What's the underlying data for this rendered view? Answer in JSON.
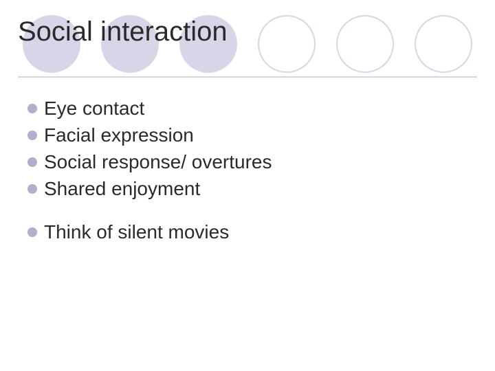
{
  "slide": {
    "title": "Social interaction",
    "title_fontsize": 40,
    "title_color": "#2a2a2a",
    "underline_color": "#d6d6e8",
    "background_color": "#ffffff",
    "circles": {
      "count": 6,
      "diameter": 84,
      "gap": 30,
      "filled_color": "#d6d6e8",
      "outline_color": "#d6d6e8",
      "pattern": [
        "filled",
        "filled",
        "filled",
        "outline",
        "outline",
        "outline"
      ]
    },
    "bullet_style": {
      "dot_color": "#b1b0cc",
      "dot_diameter": 14,
      "text_fontsize": 28,
      "text_color": "#2a2a2a"
    },
    "groups": [
      {
        "items": [
          {
            "text": "Eye contact"
          },
          {
            "text": "Facial expression"
          },
          {
            "text": "Social response/ overtures"
          },
          {
            "text": "Shared enjoyment"
          }
        ]
      },
      {
        "items": [
          {
            "text": "Think of silent movies"
          }
        ]
      }
    ]
  }
}
